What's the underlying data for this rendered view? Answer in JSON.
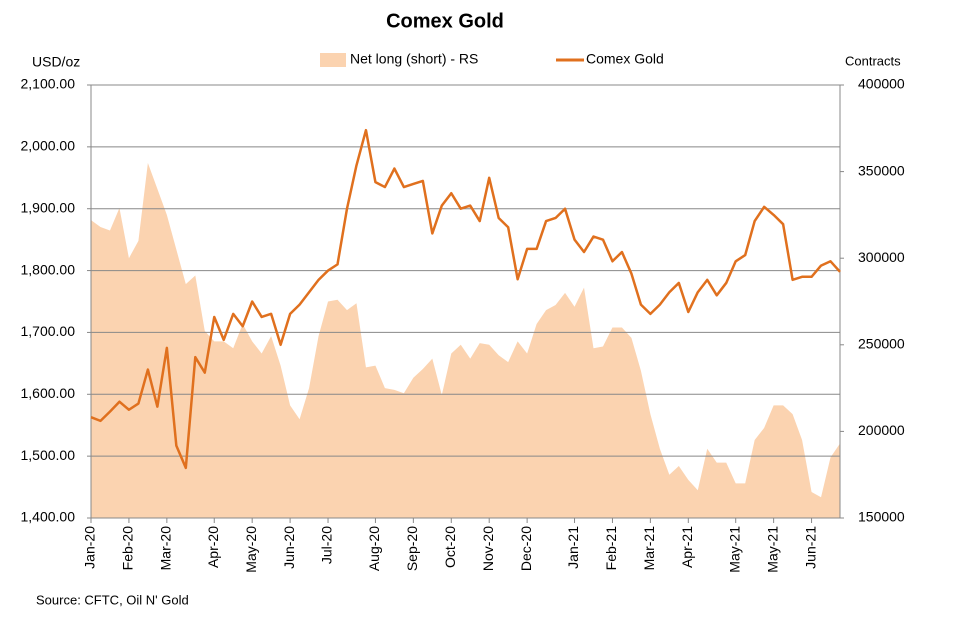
{
  "chart_data": {
    "type": "line",
    "title": "Comex Gold",
    "y_label": "USD/oz",
    "y2_label": "Contracts",
    "source": "Source: CFTC, Oil N' Gold",
    "categories": [
      "Jan-20",
      null,
      null,
      null,
      "Feb-20",
      null,
      null,
      null,
      "Mar-20",
      null,
      null,
      null,
      null,
      "Apr-20",
      null,
      null,
      null,
      "May-20",
      null,
      null,
      null,
      "Jun-20",
      null,
      null,
      null,
      "Jul-20",
      null,
      null,
      null,
      null,
      "Aug-20",
      null,
      null,
      null,
      "Sep-20",
      null,
      null,
      null,
      "Oct-20",
      null,
      null,
      null,
      "Nov-20",
      null,
      null,
      null,
      "Dec-20",
      null,
      null,
      null,
      null,
      "Jan-21",
      null,
      null,
      null,
      "Feb-21",
      null,
      null,
      null,
      "Mar-21",
      null,
      null,
      null,
      "Apr-21",
      null,
      null,
      null,
      null,
      "May-21",
      null,
      null,
      null,
      "May-21",
      null,
      null,
      null,
      "Jun-21",
      null,
      null,
      null
    ],
    "series": [
      {
        "name": "Net long (short) - RS",
        "kind": "area",
        "axis": "y2",
        "color": "#fbd3b0",
        "values": [
          322000,
          318000,
          316000,
          329000,
          300000,
          310000,
          355000,
          340000,
          325000,
          305000,
          285000,
          290000,
          258000,
          252000,
          252000,
          248000,
          262000,
          252000,
          245000,
          255000,
          238000,
          215000,
          207000,
          225000,
          255000,
          275000,
          276000,
          270000,
          274000,
          237000,
          238000,
          225000,
          224000,
          222000,
          231000,
          236000,
          242000,
          221000,
          245000,
          250000,
          242000,
          251000,
          250000,
          244000,
          240000,
          252000,
          245000,
          262000,
          270000,
          273000,
          280000,
          272000,
          283000,
          248000,
          249000,
          260000,
          260000,
          254000,
          235000,
          210000,
          190000,
          175000,
          180000,
          172000,
          166000,
          190000,
          182000,
          182000,
          170000,
          170000,
          195000,
          202000,
          215000,
          215000,
          210000,
          195000,
          165000,
          162000,
          185000,
          193000
        ]
      },
      {
        "name": "Comex Gold",
        "kind": "line",
        "color": "#e0701e",
        "values": [
          1563,
          1557,
          1572,
          1588,
          1575,
          1585,
          1640,
          1580,
          1675,
          1517,
          1481,
          1660,
          1635,
          1725,
          1688,
          1730,
          1710,
          1750,
          1725,
          1730,
          1680,
          1730,
          1745,
          1765,
          1785,
          1800,
          1810,
          1900,
          1970,
          2027,
          1943,
          1935,
          1965,
          1935,
          1940,
          1945,
          1860,
          1905,
          1925,
          1900,
          1905,
          1880,
          1950,
          1885,
          1870,
          1786,
          1835,
          1835,
          1880,
          1885,
          1900,
          1850,
          1830,
          1855,
          1850,
          1815,
          1830,
          1795,
          1745,
          1730,
          1745,
          1765,
          1780,
          1733,
          1765,
          1785,
          1760,
          1780,
          1815,
          1825,
          1880,
          1903,
          1890,
          1875,
          1785,
          1790,
          1790,
          1808,
          1815,
          1798
        ]
      }
    ],
    "ylim": [
      1400,
      2100
    ],
    "yticks": [
      {
        "value": 1400,
        "label": "1,400.00"
      },
      {
        "value": 1500,
        "label": "1,500.00"
      },
      {
        "value": 1600,
        "label": "1,600.00"
      },
      {
        "value": 1700,
        "label": "1,700.00"
      },
      {
        "value": 1800,
        "label": "1,800.00"
      },
      {
        "value": 1900,
        "label": "1,900.00"
      },
      {
        "value": 2000,
        "label": "2,000.00"
      },
      {
        "value": 2100,
        "label": "2,100.00"
      }
    ],
    "y2lim": [
      150000,
      400000
    ],
    "y2ticks": [
      150000,
      200000,
      250000,
      300000,
      350000,
      400000
    ],
    "grid": true
  }
}
